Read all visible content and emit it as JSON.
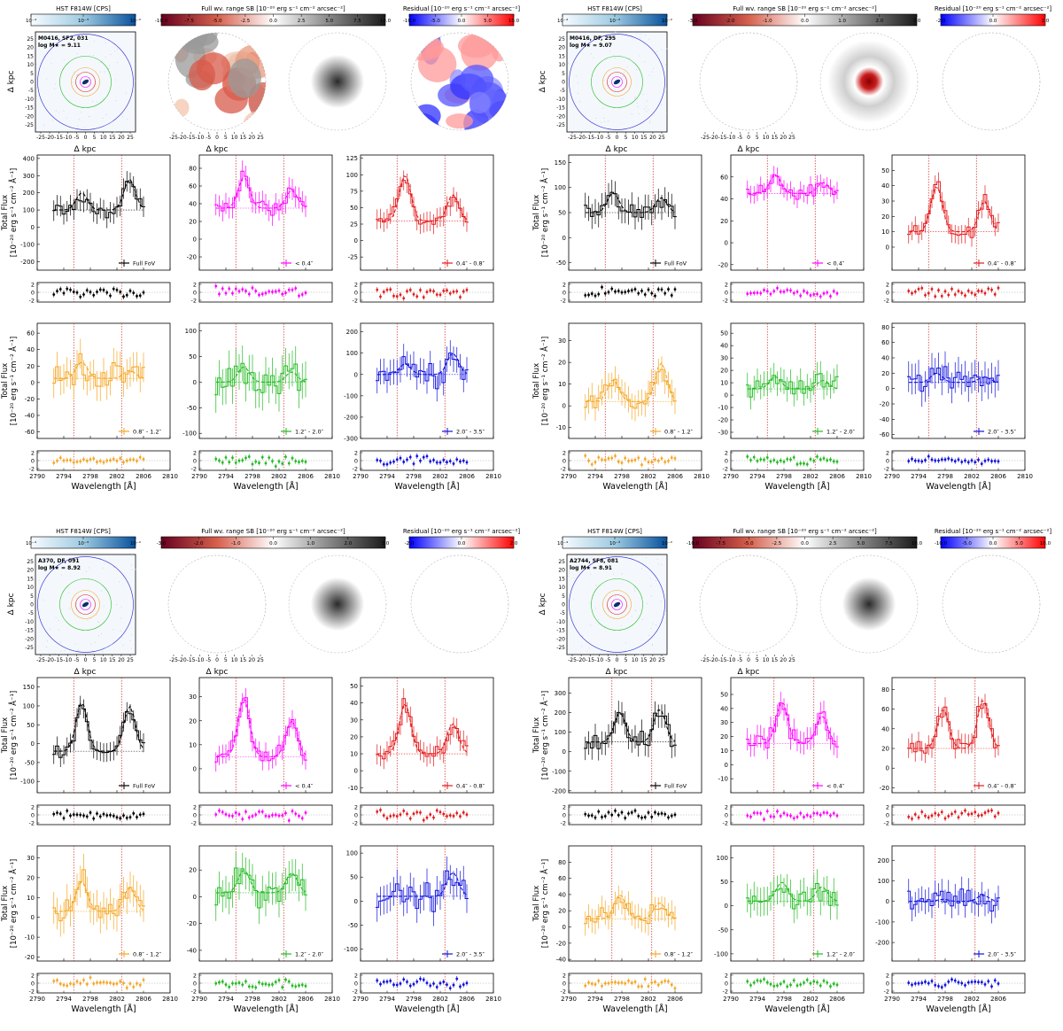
{
  "colors": {
    "full": "#000000",
    "inner": "#ff00ff",
    "ring1": "#e31a1c",
    "ring2": "#f5a623",
    "ring3": "#22bb22",
    "ring4": "#1010dd",
    "marker": "#cc2222",
    "fovCircle": "#3b3bd6"
  },
  "text": {
    "hst_label": "HST F814W [CPS]",
    "hst_ticks": [
      "10⁻⁴",
      "10⁻³",
      "10⁻²"
    ],
    "dkpc": "Δ kpc",
    "wavelength": "Wavelength [Å]",
    "flux_line1": "Total Flux",
    "flux_line2": "[10⁻²⁰ erg s⁻¹ cm⁻² Å⁻¹]",
    "x_ticks_kpc": [
      "-25",
      "-20",
      "-15",
      "-10",
      "-5",
      "0",
      "5",
      "10",
      "15",
      "20",
      "25"
    ]
  },
  "chart_data": [
    {
      "galaxy": "M0416, SF2, 031",
      "logm": "log M★ = 9.11",
      "sb_label": "Full wv. range SB [10⁻²⁰ erg s⁻¹ cm⁻² arcsec⁻²]",
      "sb_ticks": [
        "-10.0",
        "-7.5",
        "-5.0",
        "-2.5",
        "0.0",
        "2.5",
        "5.0",
        "7.5",
        "10.0"
      ],
      "res_label": "Residual [10⁻²⁰ erg s⁻¹ cm⁻² arcsec⁻²]",
      "res_ticks": [
        "-10.0",
        "-5.0",
        "0.0",
        "5.0",
        "10.0"
      ],
      "x_ticks": [
        "2790",
        "2794",
        "2798",
        "2802",
        "2806",
        "2810"
      ],
      "markers": [
        2795.5,
        2802.7
      ],
      "panels": [
        {
          "label": "Full FoV",
          "ylim": [
            -250,
            420
          ],
          "yticks": [
            -200,
            -100,
            0,
            100,
            200,
            300,
            400
          ],
          "peaks": [
            200,
            280
          ],
          "level": 100,
          "noise": 60
        },
        {
          "label": "< 0.4″",
          "ylim": [
            -35,
            95
          ],
          "yticks": [
            -20,
            0,
            20,
            40,
            60,
            80
          ],
          "peaks": [
            70,
            55
          ],
          "level": 35,
          "noise": 12
        },
        {
          "label": "0.4″ - 0.8″",
          "ylim": [
            -45,
            130
          ],
          "yticks": [
            -25,
            0,
            25,
            50,
            75,
            100,
            125
          ],
          "peaks": [
            100,
            70
          ],
          "level": 30,
          "noise": 15
        },
        {
          "label": "0.8″ - 1.2″",
          "ylim": [
            -68,
            72
          ],
          "yticks": [
            -60,
            -40,
            -20,
            0,
            20,
            40,
            60
          ],
          "peaks": [
            25,
            15
          ],
          "level": 5,
          "noise": 18
        },
        {
          "label": "1.2″ - 2.0″",
          "ylim": [
            -110,
            115
          ],
          "yticks": [
            -100,
            -50,
            0,
            50,
            100
          ],
          "peaks": [
            30,
            20
          ],
          "level": 0,
          "noise": 35
        },
        {
          "label": "2.0″ - 3.5″",
          "ylim": [
            -300,
            240
          ],
          "yticks": [
            -300,
            -200,
            -100,
            0,
            100,
            200
          ],
          "peaks": [
            50,
            100
          ],
          "level": 0,
          "noise": 60
        }
      ]
    },
    {
      "galaxy": "M0416, DF, 295",
      "logm": "log M★ = 9.07",
      "sb_label": "Full wv. range SB [10⁻²⁰ erg s⁻¹ cm⁻² arcsec⁻²]",
      "sb_ticks": [
        "-3.0",
        "-2.0",
        "-1.0",
        "0.0",
        "1.0",
        "2.0",
        "3.0"
      ],
      "res_label": "Residual [10⁻²⁰ erg s⁻¹ cm⁻² arcsec⁻²]",
      "res_ticks": [
        "-2.0",
        "0.0",
        "2.0"
      ],
      "x_ticks": [
        "2790",
        "2794",
        "2798",
        "2802",
        "2806",
        "2810"
      ],
      "markers": [
        2795.5,
        2802.7
      ],
      "panels": [
        {
          "label": "Full FoV",
          "ylim": [
            -65,
            165
          ],
          "yticks": [
            -50,
            0,
            50,
            100,
            150
          ],
          "peaks": [
            90,
            80
          ],
          "level": 50,
          "noise": 25
        },
        {
          "label": "< 0.4″",
          "ylim": [
            -25,
            80
          ],
          "yticks": [
            -20,
            0,
            20,
            40,
            60
          ],
          "peaks": [
            62,
            55
          ],
          "level": 45,
          "noise": 8
        },
        {
          "label": "0.4″ - 0.8″",
          "ylim": [
            -15,
            60
          ],
          "yticks": [
            0,
            10,
            20,
            30,
            40,
            50
          ],
          "peaks": [
            40,
            30
          ],
          "level": 10,
          "noise": 6
        },
        {
          "label": "0.8″ - 1.2″",
          "ylim": [
            -15,
            38
          ],
          "yticks": [
            -10,
            0,
            10,
            20,
            30
          ],
          "peaks": [
            12,
            20
          ],
          "level": 2,
          "noise": 6
        },
        {
          "label": "1.2″ - 2.0″",
          "ylim": [
            -35,
            58
          ],
          "yticks": [
            -30,
            -20,
            -10,
            0,
            10,
            20,
            30,
            40,
            50
          ],
          "peaks": [
            15,
            12
          ],
          "level": 5,
          "noise": 10
        },
        {
          "label": "2.0″ - 3.5″",
          "ylim": [
            -65,
            85
          ],
          "yticks": [
            -60,
            -40,
            -20,
            0,
            20,
            40,
            60,
            80
          ],
          "peaks": [
            20,
            15
          ],
          "level": 8,
          "noise": 20
        }
      ]
    },
    {
      "galaxy": "A370, DF, 091",
      "logm": "log M★ = 8.92",
      "sb_label": "Full wv. range SB [10⁻²⁰ erg s⁻¹ cm⁻² arcsec⁻²]",
      "sb_ticks": [
        "-3.0",
        "-2.0",
        "-1.0",
        "0.0",
        "1.0",
        "2.0",
        "3.0"
      ],
      "res_label": "Residual [10⁻²⁰ erg s⁻¹ cm⁻² arcsec⁻²]",
      "res_ticks": [
        "-2.0",
        "0.0",
        "2.0"
      ],
      "x_ticks": [
        "2790",
        "2794",
        "2798",
        "2802",
        "2806",
        "2810"
      ],
      "markers": [
        2795.5,
        2802.7
      ],
      "panels": [
        {
          "label": "Full FoV",
          "ylim": [
            -130,
            175
          ],
          "yticks": [
            -100,
            -50,
            0,
            50,
            100,
            150
          ],
          "peaks": [
            110,
            100
          ],
          "level": -20,
          "noise": 25
        },
        {
          "label": "< 0.4″",
          "ylim": [
            -10,
            38
          ],
          "yticks": [
            0,
            10,
            20,
            30
          ],
          "peaks": [
            30,
            20
          ],
          "level": 5,
          "noise": 4
        },
        {
          "label": "0.4″ - 0.8″",
          "ylim": [
            -13,
            55
          ],
          "yticks": [
            -10,
            0,
            10,
            20,
            30,
            40,
            50
          ],
          "peaks": [
            40,
            28
          ],
          "level": 10,
          "noise": 6
        },
        {
          "label": "0.8″ - 1.2″",
          "ylim": [
            -22,
            36
          ],
          "yticks": [
            -20,
            -10,
            0,
            10,
            20,
            30
          ],
          "peaks": [
            18,
            15
          ],
          "level": 3,
          "noise": 8
        },
        {
          "label": "1.2″ - 2.0″",
          "ylim": [
            -48,
            38
          ],
          "yticks": [
            -40,
            -20,
            0,
            20
          ],
          "peaks": [
            20,
            18
          ],
          "level": 3,
          "noise": 12
        },
        {
          "label": "2.0″ - 3.5″",
          "ylim": [
            -125,
            115
          ],
          "yticks": [
            -100,
            -50,
            0,
            50,
            100
          ],
          "peaks": [
            10,
            60
          ],
          "level": 10,
          "noise": 30
        }
      ]
    },
    {
      "galaxy": "A2744, SF8, 081",
      "logm": "log M★ = 8.91",
      "sb_label": "Full wv. range SB [10⁻²⁰ erg s⁻¹ cm⁻² arcsec⁻²]",
      "sb_ticks": [
        "-10.0",
        "-7.5",
        "-5.0",
        "-2.5",
        "0.0",
        "2.5",
        "5.0",
        "7.5",
        "10.0"
      ],
      "res_label": "Residual [10⁻²⁰ erg s⁻¹ cm⁻² arcsec⁻²]",
      "res_ticks": [
        "-10.0",
        "-5.0",
        "0.0",
        "5.0",
        "10.0"
      ],
      "x_ticks": [
        "2790",
        "2794",
        "2798",
        "2802",
        "2806"
      ],
      "markers": [
        2796.5,
        2802.5
      ],
      "panels": [
        {
          "label": "Full FoV",
          "ylim": [
            -210,
            380
          ],
          "yticks": [
            -200,
            -100,
            0,
            100,
            200,
            300
          ],
          "peaks": [
            200,
            220
          ],
          "level": 50,
          "noise": 60
        },
        {
          "label": "< 0.4″",
          "ylim": [
            -20,
            62
          ],
          "yticks": [
            -10,
            0,
            10,
            20,
            30,
            40,
            50
          ],
          "peaks": [
            45,
            35
          ],
          "level": 15,
          "noise": 8
        },
        {
          "label": "0.4″ - 0.8″",
          "ylim": [
            -25,
            92
          ],
          "yticks": [
            -20,
            0,
            20,
            40,
            60,
            80
          ],
          "peaks": [
            60,
            70
          ],
          "level": 20,
          "noise": 10
        },
        {
          "label": "0.8″ - 1.2″",
          "ylim": [
            -42,
            100
          ],
          "yticks": [
            -40,
            -20,
            0,
            20,
            40,
            60,
            80
          ],
          "peaks": [
            40,
            30
          ],
          "level": 10,
          "noise": 15
        },
        {
          "label": "1.2″ - 2.0″",
          "ylim": [
            -115,
            125
          ],
          "yticks": [
            -100,
            -50,
            0,
            50,
            100
          ],
          "peaks": [
            50,
            40
          ],
          "level": 10,
          "noise": 30
        },
        {
          "label": "2.0″ - 3.5″",
          "ylim": [
            -290,
            270
          ],
          "yticks": [
            -200,
            -100,
            0,
            100,
            200
          ],
          "peaks": [
            10,
            30
          ],
          "level": 0,
          "noise": 60
        }
      ]
    }
  ]
}
